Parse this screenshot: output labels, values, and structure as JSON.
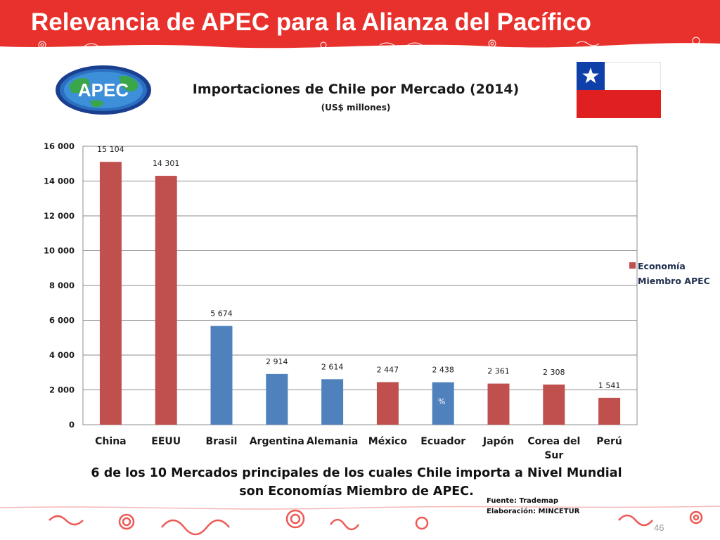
{
  "slide": {
    "title": "Relevancia de APEC para la Alianza del Pacífico",
    "page_number": "46"
  },
  "logo": {
    "text": "APEC"
  },
  "chart_title": "Importaciones de Chile por Mercado  (2014)",
  "chart_subtitle": "(US$ millones)",
  "chart_data": {
    "type": "bar",
    "title": "Importaciones de Chile por Mercado  (2014)",
    "subtitle": "(US$ millones)",
    "categories": [
      "China",
      "EEUU",
      "Brasil",
      "Argentina",
      "Alemania",
      "México",
      "Ecuador",
      "Japón",
      "Corea del Sur",
      "Perú"
    ],
    "values": [
      15104,
      14301,
      5674,
      2914,
      2614,
      2447,
      2438,
      2361,
      2308,
      1541
    ],
    "value_labels": [
      "15 104",
      "14 301",
      "5 674",
      "2 914",
      "2 614",
      "2 447",
      "2 438",
      "2 361",
      "2 308",
      "1 541"
    ],
    "apec_member": [
      true,
      true,
      false,
      false,
      false,
      true,
      false,
      true,
      true,
      true
    ],
    "category_label_lines": [
      [
        "China"
      ],
      [
        "EEUU"
      ],
      [
        "Brasil"
      ],
      [
        "Argentina"
      ],
      [
        "Alemania"
      ],
      [
        "México"
      ],
      [
        "Ecuador"
      ],
      [
        "Japón"
      ],
      [
        "Corea del",
        "Sur"
      ],
      [
        "Perú"
      ]
    ],
    "yticks": [
      0,
      2000,
      4000,
      6000,
      8000,
      10000,
      12000,
      14000,
      16000
    ],
    "ytick_labels": [
      "0",
      "2 000",
      "4 000",
      "6 000",
      "8 000",
      "10 000",
      "12 000",
      "14 000",
      "16 000"
    ],
    "ylim": [
      0,
      16000
    ],
    "grid": true,
    "legend": {
      "label": "Economía Miembro APEC",
      "placement": "right"
    },
    "annotation": "%",
    "annotation_category": "Ecuador",
    "colors": {
      "apec": "#c0504d",
      "non_apec": "#4f81bd"
    }
  },
  "conclusion": "6 de los 10 Mercados principales de los cuales Chile importa a Nivel Mundial son Economías Miembro de APEC.",
  "source": {
    "line1": "Fuente: Trademap",
    "line2": "Elaboración: MINCETUR"
  },
  "theme": {
    "header_red": "#e8312c",
    "flag_blue": "#0f3fa8",
    "flag_red": "#e02020"
  }
}
